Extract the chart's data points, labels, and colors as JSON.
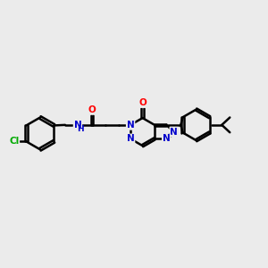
{
  "background_color": "#ebebeb",
  "bond_color": "#000000",
  "bond_width": 1.8,
  "figsize": [
    3.0,
    3.0
  ],
  "dpi": 100,
  "atom_colors": {
    "O": "#ff0000",
    "N": "#0000cc",
    "Cl": "#00aa00",
    "C": "#000000"
  },
  "xlim": [
    0,
    10
  ],
  "ylim": [
    2.5,
    7.5
  ]
}
